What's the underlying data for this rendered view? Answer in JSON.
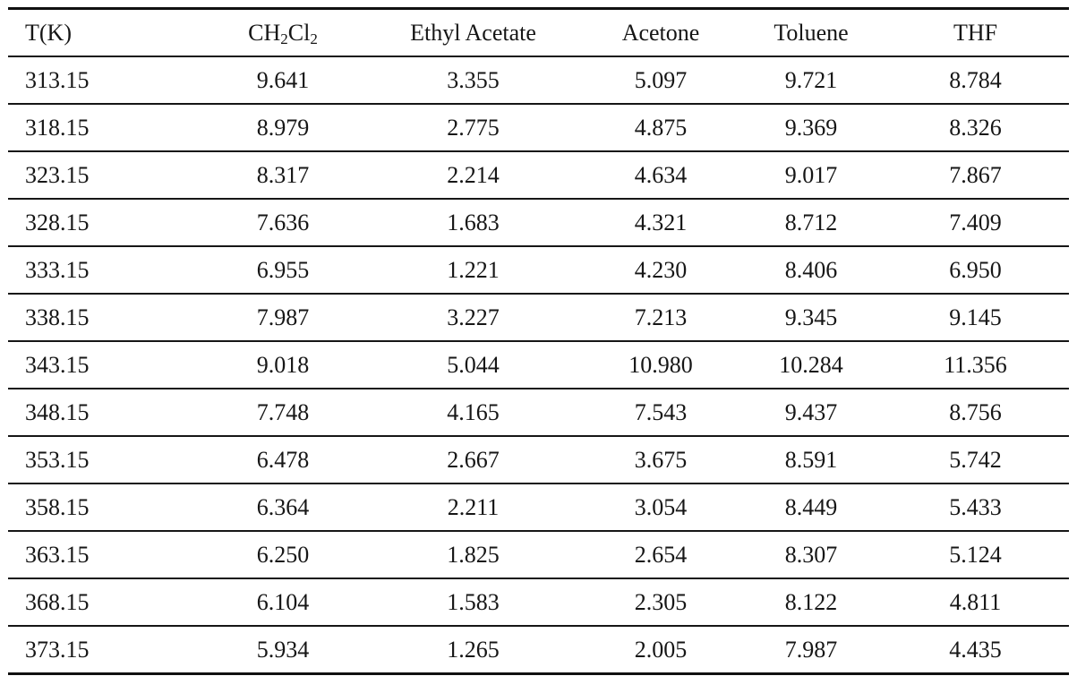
{
  "table": {
    "columns": [
      {
        "label": "T(K)"
      },
      {
        "parts": [
          "CH",
          "2",
          "Cl",
          "2"
        ]
      },
      {
        "label": "Ethyl Acetate"
      },
      {
        "label": "Acetone"
      },
      {
        "label": "Toluene"
      },
      {
        "label": "THF"
      }
    ],
    "rows": [
      [
        "313.15",
        "9.641",
        "3.355",
        "5.097",
        "9.721",
        "8.784"
      ],
      [
        "318.15",
        "8.979",
        "2.775",
        "4.875",
        "9.369",
        "8.326"
      ],
      [
        "323.15",
        "8.317",
        "2.214",
        "4.634",
        "9.017",
        "7.867"
      ],
      [
        "328.15",
        "7.636",
        "1.683",
        "4.321",
        "8.712",
        "7.409"
      ],
      [
        "333.15",
        "6.955",
        "1.221",
        "4.230",
        "8.406",
        "6.950"
      ],
      [
        "338.15",
        "7.987",
        "3.227",
        "7.213",
        "9.345",
        "9.145"
      ],
      [
        "343.15",
        "9.018",
        "5.044",
        "10.980",
        "10.284",
        "11.356"
      ],
      [
        "348.15",
        "7.748",
        "4.165",
        "7.543",
        "9.437",
        "8.756"
      ],
      [
        "353.15",
        "6.478",
        "2.667",
        "3.675",
        "8.591",
        "5.742"
      ],
      [
        "358.15",
        "6.364",
        "2.211",
        "3.054",
        "8.449",
        "5.433"
      ],
      [
        "363.15",
        "6.250",
        "1.825",
        "2.654",
        "8.307",
        "5.124"
      ],
      [
        "368.15",
        "6.104",
        "1.583",
        "2.305",
        "8.122",
        "4.811"
      ],
      [
        "373.15",
        "5.934",
        "1.265",
        "2.005",
        "7.987",
        "4.435"
      ]
    ]
  },
  "colors": {
    "text": "#161616",
    "rule": "#101010",
    "background": "#ffffff"
  }
}
